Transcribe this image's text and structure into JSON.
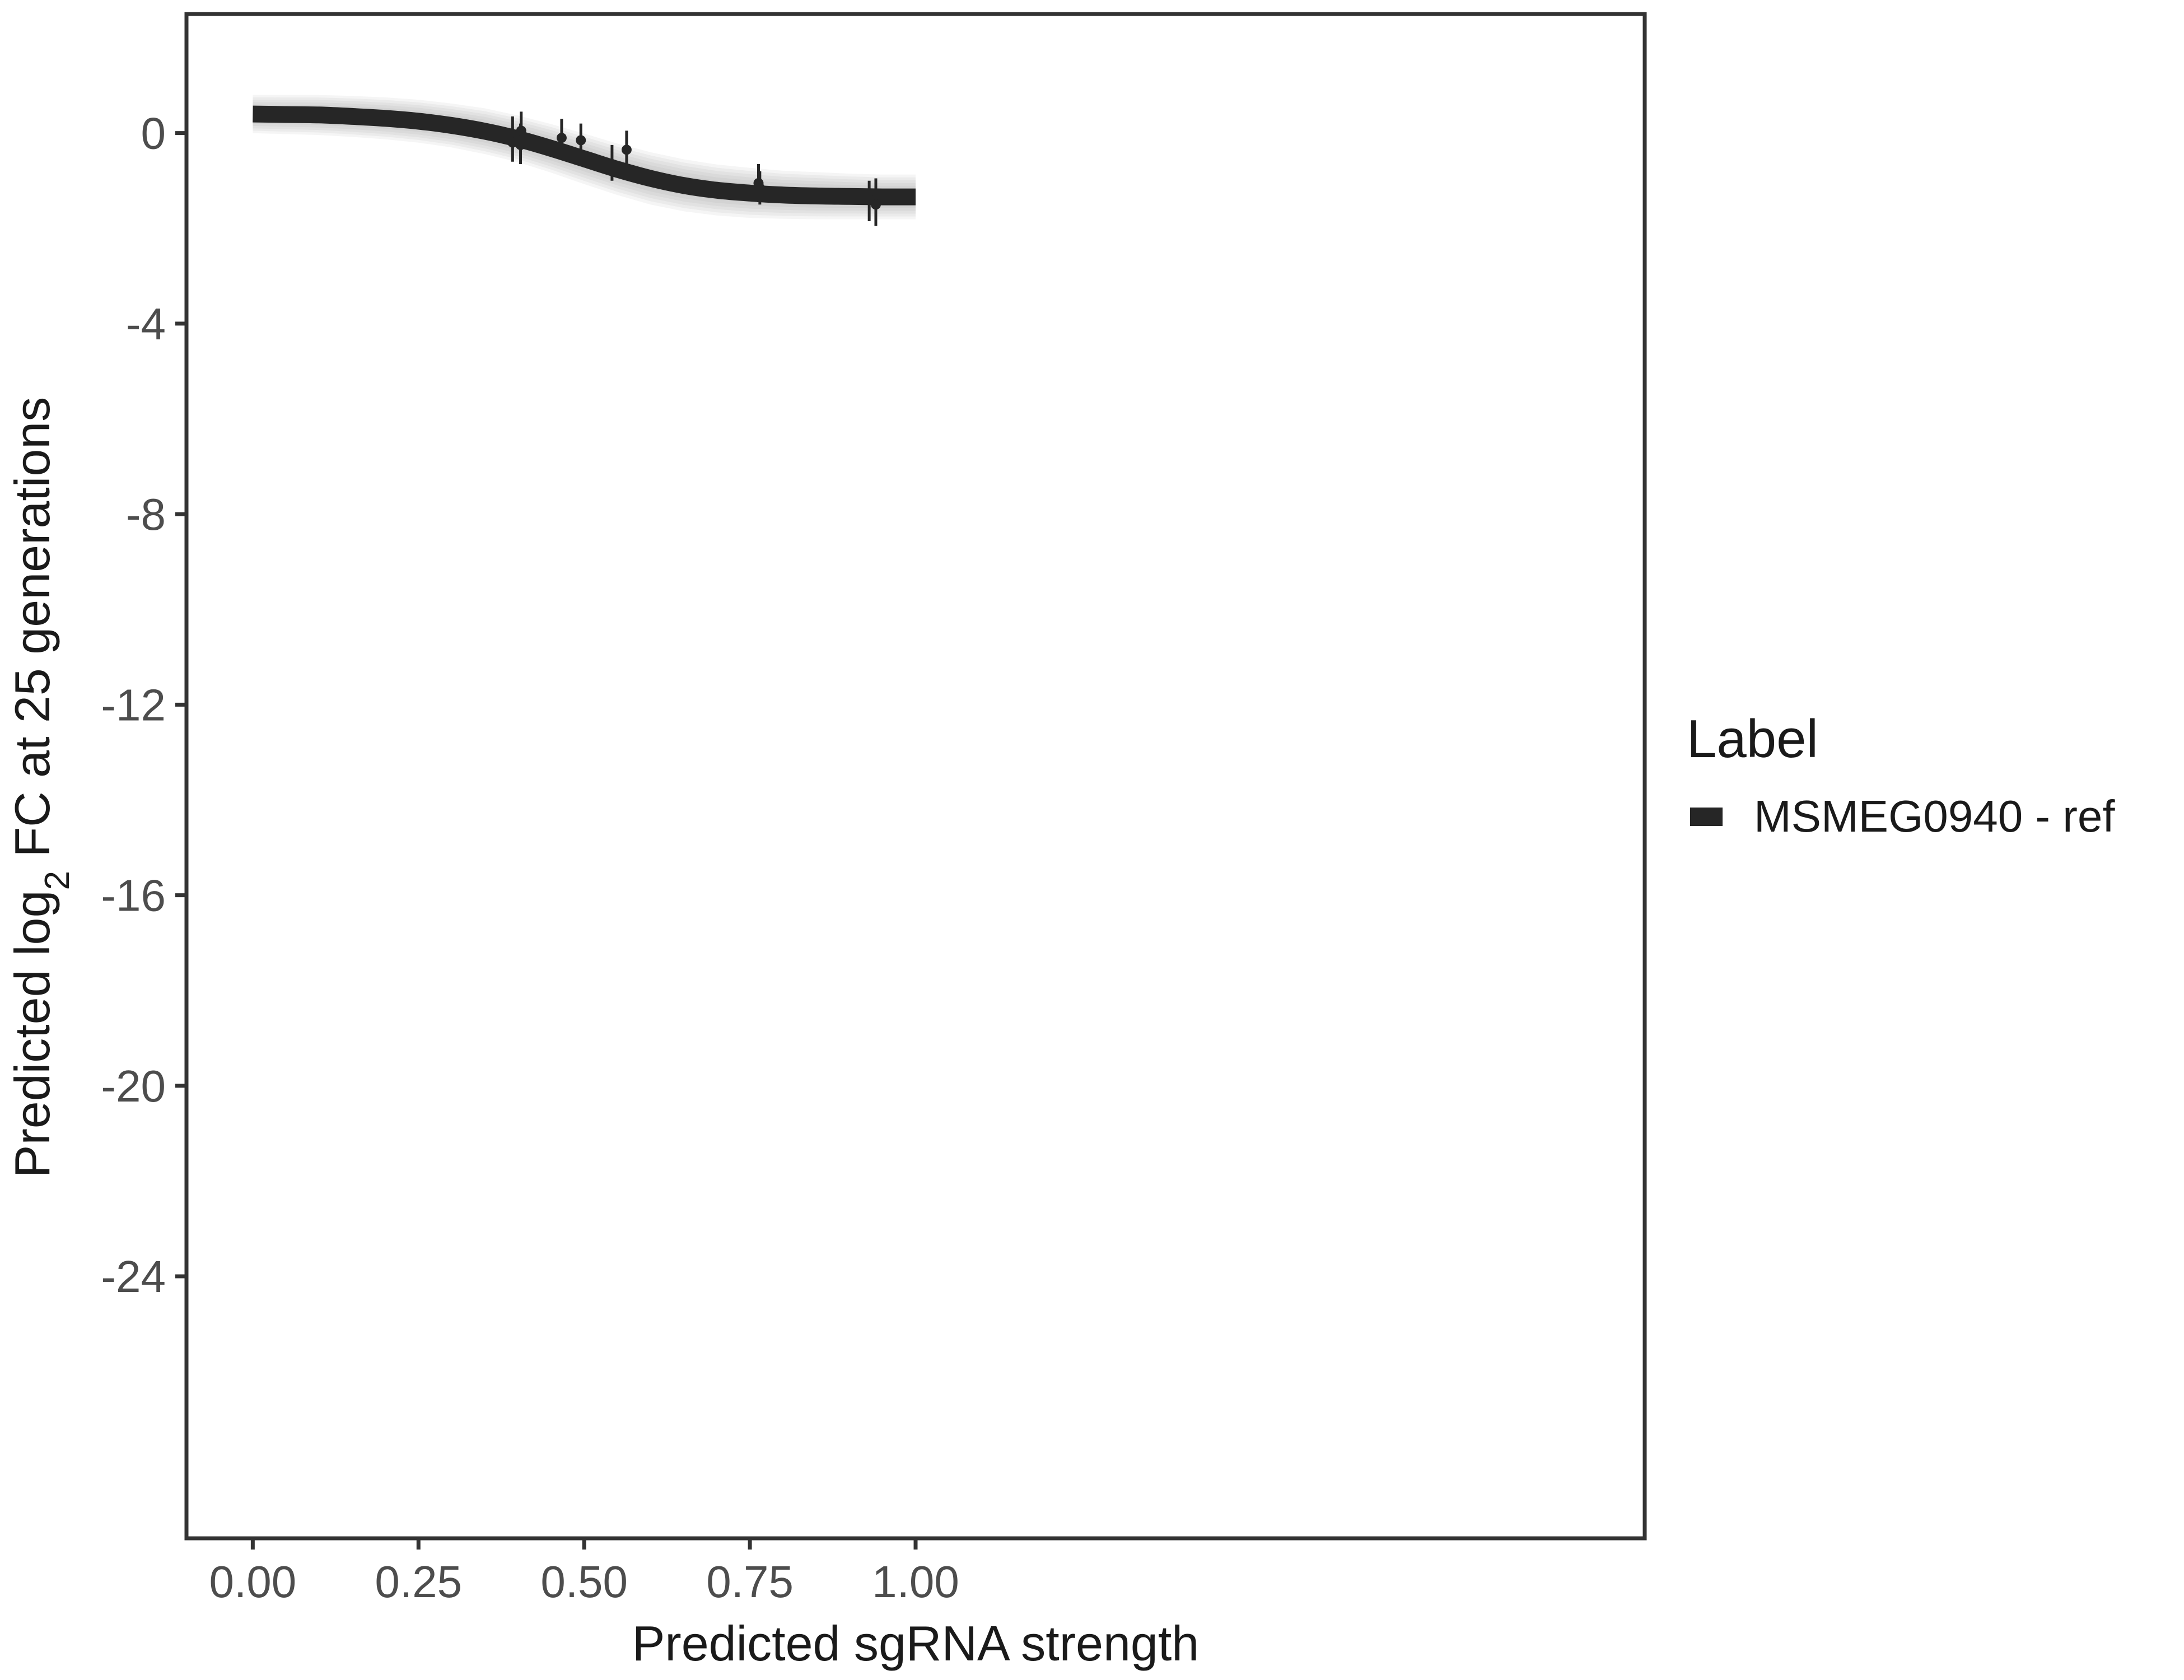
{
  "chart_data": {
    "type": "line",
    "xlabel": "Predicted sgRNA strength",
    "ylabel_prefix": "Predicted  log",
    "ylabel_subscript": "2",
    "ylabel_suffix": " FC at 25 generations",
    "xlim": [
      -0.1,
      2.1
    ],
    "ylim": [
      -29.5,
      2.5
    ],
    "x_ticks": [
      0.0,
      0.25,
      0.5,
      0.75,
      1.0
    ],
    "x_tick_labels": [
      "0.00",
      "0.25",
      "0.50",
      "0.75",
      "1.00"
    ],
    "y_ticks": [
      0,
      -4,
      -8,
      -12,
      -16,
      -20,
      -24
    ],
    "y_tick_labels": [
      "0",
      "-4",
      "-8",
      "-12",
      "-16",
      "-20",
      "-24"
    ],
    "grid": false,
    "legend": {
      "title": "Label",
      "position": "right",
      "entries": [
        {
          "label": "MSMEG0940 - ref",
          "color": "#262626"
        }
      ]
    },
    "series": [
      {
        "name": "MSMEG0940 - ref",
        "color": "#262626",
        "kind": "fit-curve",
        "x": [
          0.0,
          0.05,
          0.1,
          0.15,
          0.2,
          0.25,
          0.3,
          0.35,
          0.4,
          0.45,
          0.5,
          0.55,
          0.6,
          0.65,
          0.7,
          0.75,
          0.8,
          0.85,
          0.9,
          0.95,
          1.0
        ],
        "y": [
          0.4,
          0.39,
          0.38,
          0.35,
          0.31,
          0.25,
          0.16,
          0.04,
          -0.12,
          -0.32,
          -0.54,
          -0.76,
          -0.95,
          -1.1,
          -1.2,
          -1.26,
          -1.3,
          -1.32,
          -1.33,
          -1.34,
          -1.34
        ],
        "uncertainty_band": {
          "lower": [
            0.0,
            -0.02,
            -0.04,
            -0.08,
            -0.13,
            -0.2,
            -0.3,
            -0.44,
            -0.61,
            -0.83,
            -1.07,
            -1.3,
            -1.5,
            -1.64,
            -1.73,
            -1.78,
            -1.8,
            -1.81,
            -1.81,
            -1.81,
            -1.81
          ],
          "upper": [
            0.8,
            0.8,
            0.8,
            0.78,
            0.75,
            0.7,
            0.62,
            0.52,
            0.37,
            0.19,
            -0.01,
            -0.22,
            -0.4,
            -0.55,
            -0.66,
            -0.73,
            -0.79,
            -0.82,
            -0.85,
            -0.87,
            -0.87
          ]
        }
      },
      {
        "name": "observed",
        "color": "#262626",
        "kind": "points-with-error-bars",
        "points": [
          {
            "x": 0.392,
            "y": -0.2,
            "ylow": -0.6,
            "yhigh": 0.35
          },
          {
            "x": 0.404,
            "y": -0.25,
            "ylow": -0.65,
            "yhigh": 0.2
          },
          {
            "x": 0.405,
            "y": 0.05,
            "ylow": -0.35,
            "yhigh": 0.45
          },
          {
            "x": 0.466,
            "y": -0.1,
            "ylow": -0.4,
            "yhigh": 0.3
          },
          {
            "x": 0.495,
            "y": -0.15,
            "ylow": -0.45,
            "yhigh": 0.2
          },
          {
            "x": 0.542,
            "y": -0.65,
            "ylow": -1.0,
            "yhigh": -0.25
          },
          {
            "x": 0.564,
            "y": -0.35,
            "ylow": -0.65,
            "yhigh": 0.05
          },
          {
            "x": 0.763,
            "y": -1.05,
            "ylow": -1.45,
            "yhigh": -0.65
          },
          {
            "x": 0.765,
            "y": -1.15,
            "ylow": -1.5,
            "yhigh": -0.8
          },
          {
            "x": 0.93,
            "y": -1.4,
            "ylow": -1.85,
            "yhigh": -1.0
          },
          {
            "x": 0.94,
            "y": -1.5,
            "ylow": -1.95,
            "yhigh": -0.95
          }
        ]
      }
    ]
  }
}
